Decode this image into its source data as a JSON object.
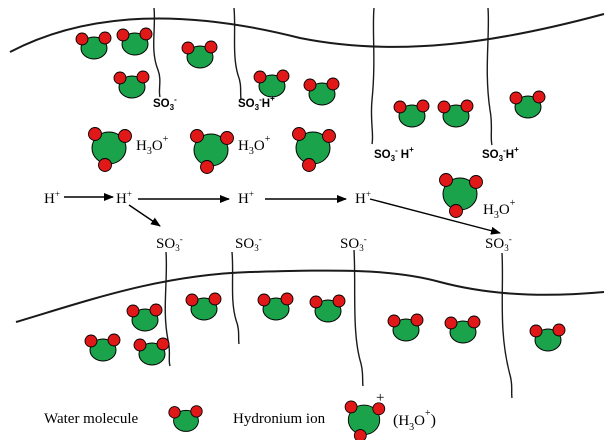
{
  "labels": {
    "so3": "SO",
    "so3_h": "SO",
    "h_plus": "H",
    "h3o": "H",
    "legend_water": "Water molecule",
    "legend_hydronium": "Hydronium ion",
    "legend_formula": "H"
  },
  "colors": {
    "oxygen": "#1aa34a",
    "hydrogen": "#e01818",
    "outline": "#000000",
    "line": "#1a1a1a"
  },
  "icons": {
    "water": "water-molecule-icon",
    "hydronium": "hydronium-ion-icon",
    "arrow": "arrow-right-icon"
  }
}
